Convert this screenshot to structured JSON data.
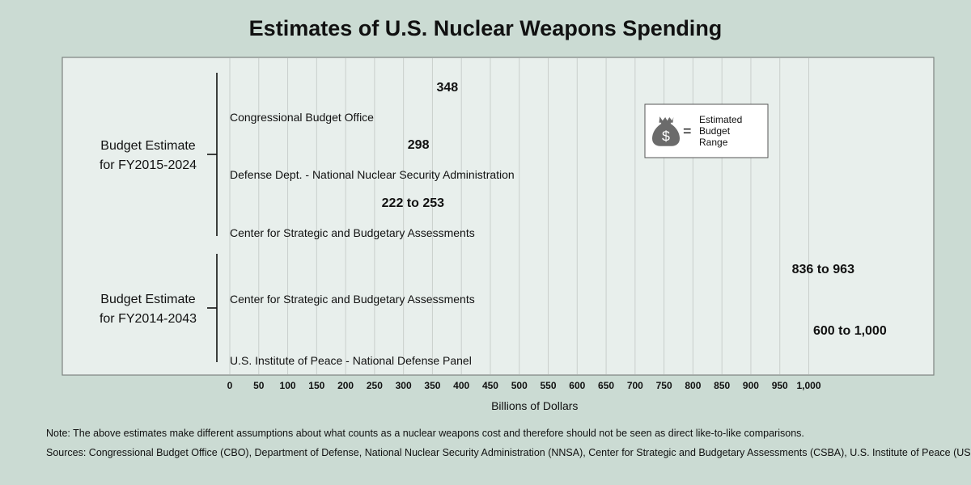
{
  "title": "Estimates of U.S. Nuclear Weapons Spending",
  "legend": {
    "label_lines": [
      "Estimated",
      "Budget",
      "Range"
    ],
    "equals": "="
  },
  "footnotes": {
    "note": "Note: The above estimates make different assumptions about what counts as a nuclear weapons cost and therefore should not be seen as direct like-to-like comparisons.",
    "sources": "Sources: Congressional Budget Office (CBO), Department of Defense, National Nuclear Security Administration (NNSA), Center for Strategic and Budgetary Assessments (CSBA), U.S. Institute of Peace (USIP)."
  },
  "colors": {
    "background": "#cbdbd3",
    "plot_background": "#e8efec",
    "bag_solid": "#0d0d0d",
    "bag_range": "#6b6b6b",
    "grid": "#c9cfcc"
  },
  "icons": {
    "unit": "money-bag-icon"
  },
  "chart_data": {
    "type": "bar",
    "unit_per_icon": 50,
    "xlabel": "Billions of Dollars",
    "xlim": [
      0,
      1000
    ],
    "xticks": [
      "0",
      "50",
      "100",
      "150",
      "200",
      "250",
      "300",
      "350",
      "400",
      "450",
      "500",
      "550",
      "600",
      "650",
      "700",
      "750",
      "800",
      "850",
      "900",
      "950",
      "1,000"
    ],
    "grid": true,
    "legend_position": "top-right",
    "groups": [
      {
        "label_lines": [
          "Budget Estimate",
          "for FY2015-2024"
        ],
        "bars": [
          {
            "name": "Congressional Budget Office",
            "low": 348,
            "high": 348,
            "label": "348"
          },
          {
            "name": "Defense Dept. - National Nuclear Security Administration",
            "low": 298,
            "high": 298,
            "label": "298"
          },
          {
            "name": "Center for Strategic and Budgetary Assessments",
            "low": 222,
            "high": 253,
            "label": "222 to 253"
          }
        ]
      },
      {
        "label_lines": [
          "Budget Estimate",
          "for FY2014-2043"
        ],
        "bars": [
          {
            "name": "Center for Strategic and Budgetary Assessments",
            "low": 836,
            "high": 963,
            "label": "836 to 963"
          },
          {
            "name": "U.S. Institute of Peace - National Defense Panel",
            "low": 600,
            "high": 1000,
            "label": "600 to 1,000"
          }
        ]
      }
    ]
  }
}
